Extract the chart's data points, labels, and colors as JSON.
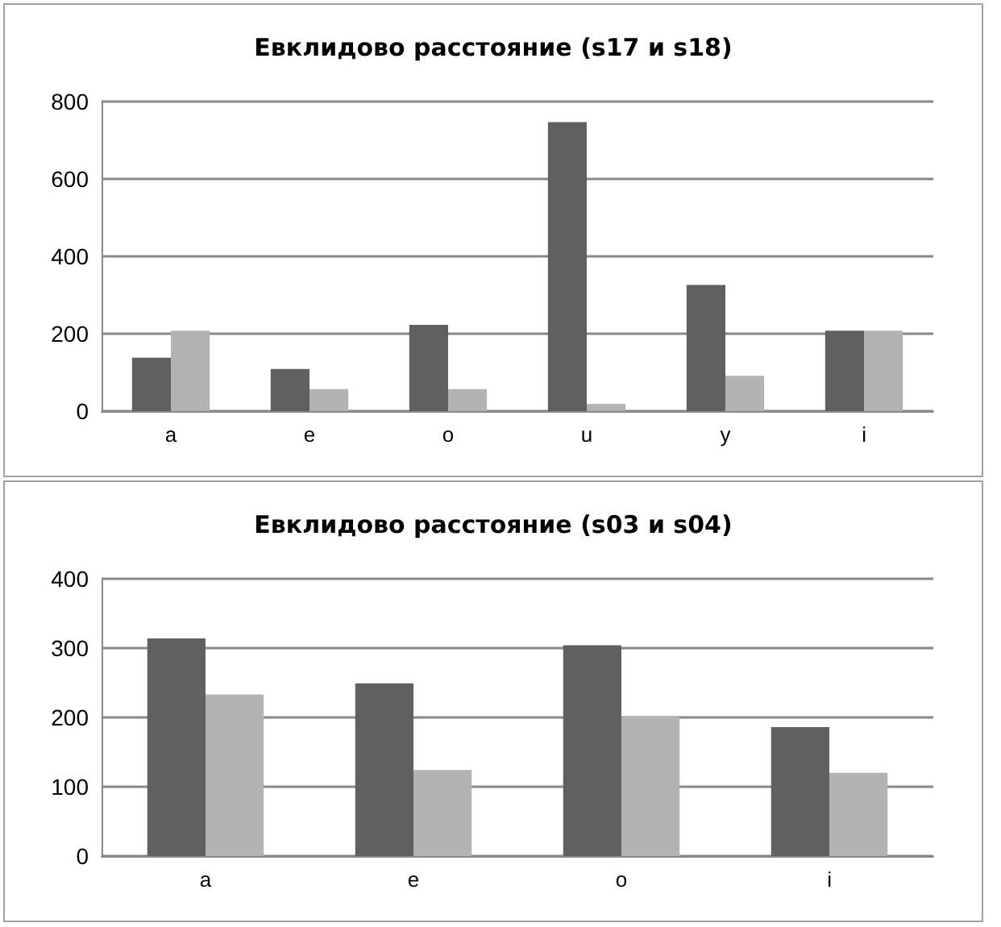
{
  "chart_data": [
    {
      "type": "bar",
      "title": "Евклидово расстояние (s17 и s18)",
      "categories": [
        "a",
        "e",
        "o",
        "u",
        "y",
        "i"
      ],
      "series": [
        {
          "color": "#606060",
          "values": [
            138,
            109,
            223,
            747,
            326,
            208
          ]
        },
        {
          "color": "#b3b3b3",
          "values": [
            208,
            57,
            57,
            19,
            91,
            208
          ]
        }
      ],
      "ylim": [
        0,
        800
      ],
      "yticks": [
        0,
        200,
        400,
        600,
        800
      ],
      "grid": "y"
    },
    {
      "type": "bar",
      "title": "Евклидово расстояние (s03 и s04)",
      "categories": [
        "a",
        "e",
        "o",
        "i"
      ],
      "series": [
        {
          "color": "#606060",
          "values": [
            314,
            249,
            304,
            186
          ]
        },
        {
          "color": "#b3b3b3",
          "values": [
            233,
            124,
            202,
            120
          ]
        }
      ],
      "ylim": [
        0,
        400
      ],
      "yticks": [
        0,
        100,
        200,
        300,
        400
      ],
      "grid": "y"
    }
  ]
}
